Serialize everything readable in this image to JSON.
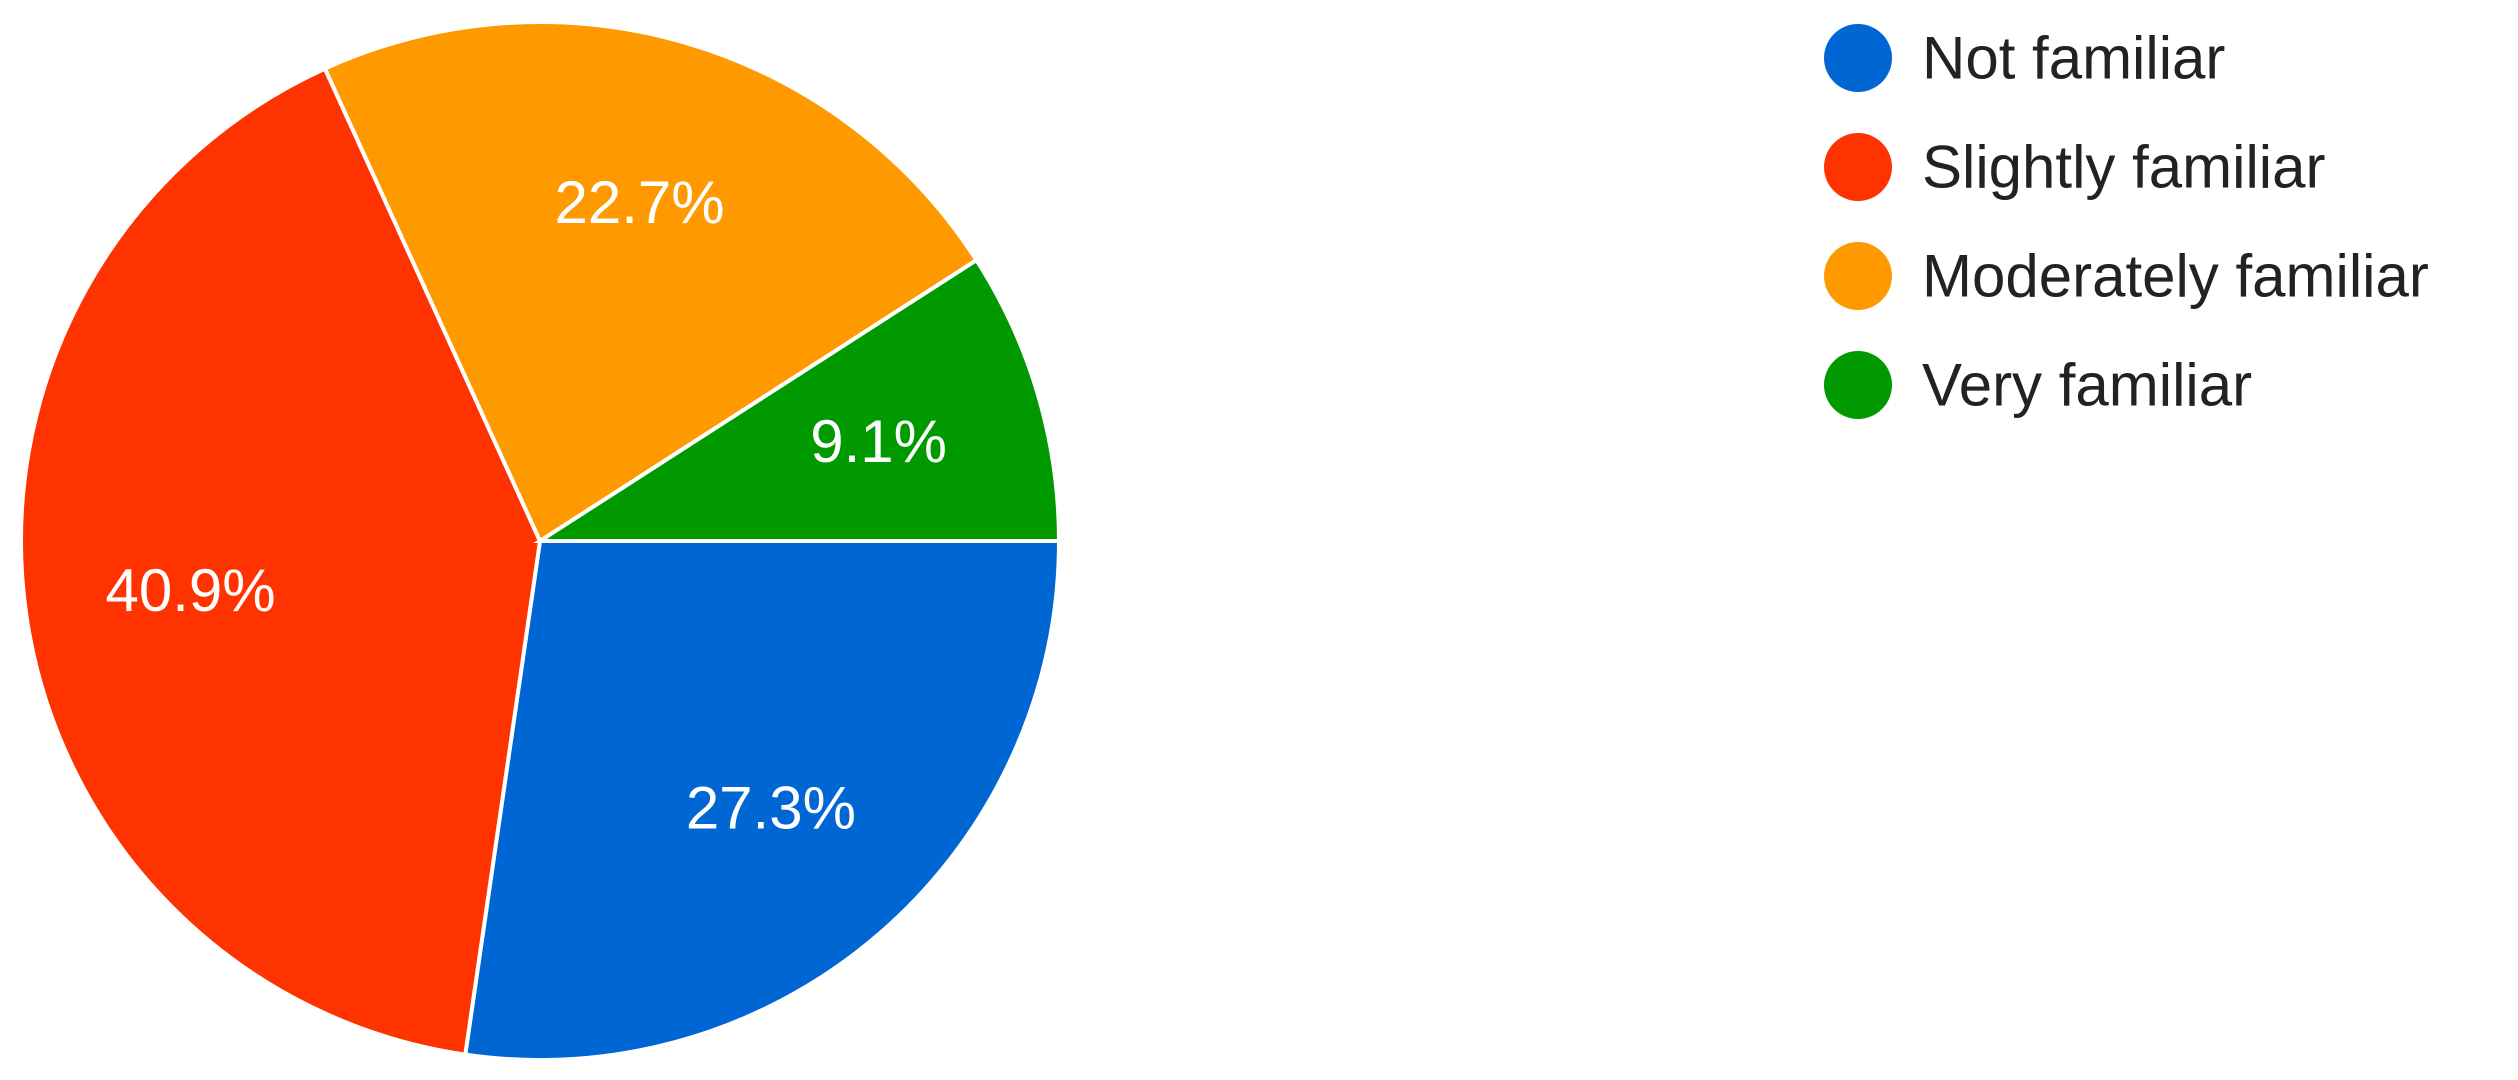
{
  "chart_data": {
    "type": "pie",
    "categories": [
      "Not familiar",
      "Slightly familiar",
      "Moderately familiar",
      "Very familiar"
    ],
    "values": [
      27.3,
      40.9,
      22.7,
      9.1
    ],
    "value_labels": [
      "27.3%",
      "40.9%",
      "22.7%",
      "9.1%"
    ],
    "colors": [
      "#0066d4",
      "#ff3300",
      "#ff9900",
      "#009900"
    ],
    "legend": "right"
  }
}
